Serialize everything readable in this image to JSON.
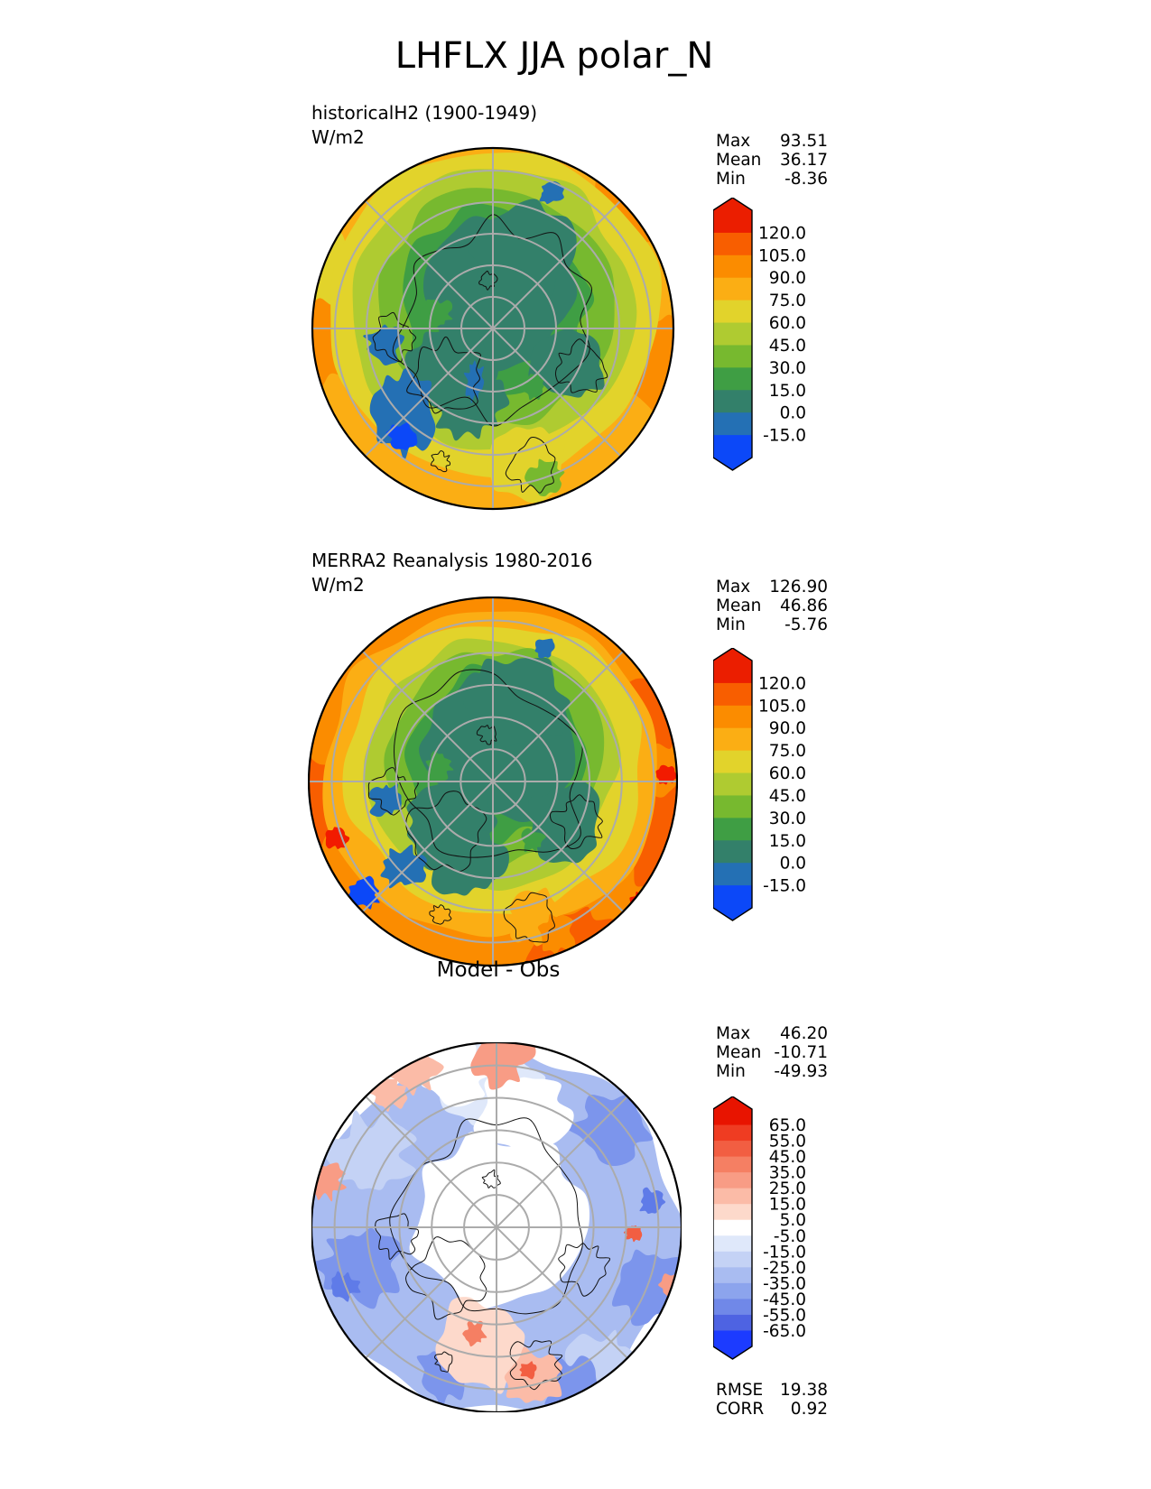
{
  "page": {
    "title": "LHFLX JJA polar_N",
    "background": "#ffffff"
  },
  "panels": [
    {
      "name": "model",
      "subtitle_line1": "historicalH2 (1900-1949)",
      "subtitle_line2": "W/m2",
      "stats": {
        "rows": [
          {
            "label": "Max",
            "value": "93.51"
          },
          {
            "label": "Mean",
            "value": "36.17"
          },
          {
            "label": "Min",
            "value": "-8.36"
          }
        ]
      },
      "colorbar": {
        "tick_labels": [
          "120.0",
          "105.0",
          "90.0",
          "75.0",
          "60.0",
          "45.0",
          "30.0",
          "15.0",
          "0.0",
          "-15.0"
        ],
        "band_colors_top_to_bottom": [
          "#EB1E00",
          "#F85E00",
          "#FB8C00",
          "#FBAE14",
          "#E2D32B",
          "#AFCB31",
          "#77B92F",
          "#3F9E44",
          "#33806A",
          "#2470B4",
          "#0C48F8"
        ]
      }
    },
    {
      "name": "reference",
      "subtitle_line1": "MERRA2 Reanalysis 1980-2016",
      "subtitle_line2": "W/m2",
      "stats": {
        "rows": [
          {
            "label": "Max",
            "value": "126.90"
          },
          {
            "label": "Mean",
            "value": "46.86"
          },
          {
            "label": "Min",
            "value": "-5.76"
          }
        ]
      },
      "colorbar": {
        "tick_labels": [
          "120.0",
          "105.0",
          "90.0",
          "75.0",
          "60.0",
          "45.0",
          "30.0",
          "15.0",
          "0.0",
          "-15.0"
        ],
        "band_colors_top_to_bottom": [
          "#EB1E00",
          "#F85E00",
          "#FB8C00",
          "#FBAE14",
          "#E2D32B",
          "#AFCB31",
          "#77B92F",
          "#3F9E44",
          "#33806A",
          "#2470B4",
          "#0C48F8"
        ]
      }
    },
    {
      "name": "difference",
      "title": "Model - Obs",
      "stats": {
        "rows": [
          {
            "label": "Max",
            "value": "46.20"
          },
          {
            "label": "Mean",
            "value": "-10.71"
          },
          {
            "label": "Min",
            "value": "-49.93"
          }
        ]
      },
      "colorbar": {
        "tick_labels": [
          "65.0",
          "55.0",
          "45.0",
          "35.0",
          "25.0",
          "15.0",
          "5.0",
          "-5.0",
          "-15.0",
          "-25.0",
          "-35.0",
          "-45.0",
          "-55.0",
          "-65.0"
        ],
        "band_colors_top_to_bottom": [
          "#E81400",
          "#EF3C22",
          "#F25E42",
          "#F57F63",
          "#F89C85",
          "#FBBBA7",
          "#FDD9CB",
          "#FFFFFF",
          "#DFE8FA",
          "#C4D2F5",
          "#A9BCF1",
          "#8CA4ED",
          "#7088E8",
          "#4E63E2",
          "#1C3BFF"
        ]
      },
      "extra_stats": {
        "rows": [
          {
            "label": "RMSE",
            "value": "19.38"
          },
          {
            "label": "CORR",
            "value": "0.92"
          }
        ]
      }
    }
  ],
  "chart_data": [
    {
      "type": "heatmap",
      "subtype": "north_polar_stereographic_contour_map",
      "variable": "LHFLX",
      "season": "JJA",
      "region": "polar_N",
      "title": "historicalH2 (1900-1949)",
      "units": "W/m2",
      "stats": {
        "max": 93.51,
        "mean": 36.17,
        "min": -8.36
      },
      "contour_levels": [
        -15,
        0,
        15,
        30,
        45,
        60,
        75,
        90,
        105,
        120
      ],
      "colorbar_extend": "both",
      "legend_position": "right",
      "graticule": {
        "parallels_step_deg": 10,
        "meridians_step_deg": 45
      }
    },
    {
      "type": "heatmap",
      "subtype": "north_polar_stereographic_contour_map",
      "variable": "LHFLX",
      "season": "JJA",
      "region": "polar_N",
      "title": "MERRA2 Reanalysis 1980-2016",
      "units": "W/m2",
      "stats": {
        "max": 126.9,
        "mean": 46.86,
        "min": -5.76
      },
      "contour_levels": [
        -15,
        0,
        15,
        30,
        45,
        60,
        75,
        90,
        105,
        120
      ],
      "colorbar_extend": "both",
      "legend_position": "right",
      "graticule": {
        "parallels_step_deg": 10,
        "meridians_step_deg": 45
      }
    },
    {
      "type": "heatmap",
      "subtype": "north_polar_stereographic_contour_map",
      "variable": "LHFLX difference",
      "season": "JJA",
      "region": "polar_N",
      "title": "Model - Obs",
      "units": "W/m2",
      "stats": {
        "max": 46.2,
        "mean": -10.71,
        "min": -49.93,
        "rmse": 19.38,
        "corr": 0.92
      },
      "contour_levels": [
        -65,
        -55,
        -45,
        -35,
        -25,
        -15,
        -5,
        5,
        15,
        25,
        35,
        45,
        55,
        65
      ],
      "colorbar_extend": "both",
      "legend_position": "right",
      "graticule": {
        "parallels_step_deg": 10,
        "meridians_step_deg": 45
      }
    }
  ]
}
